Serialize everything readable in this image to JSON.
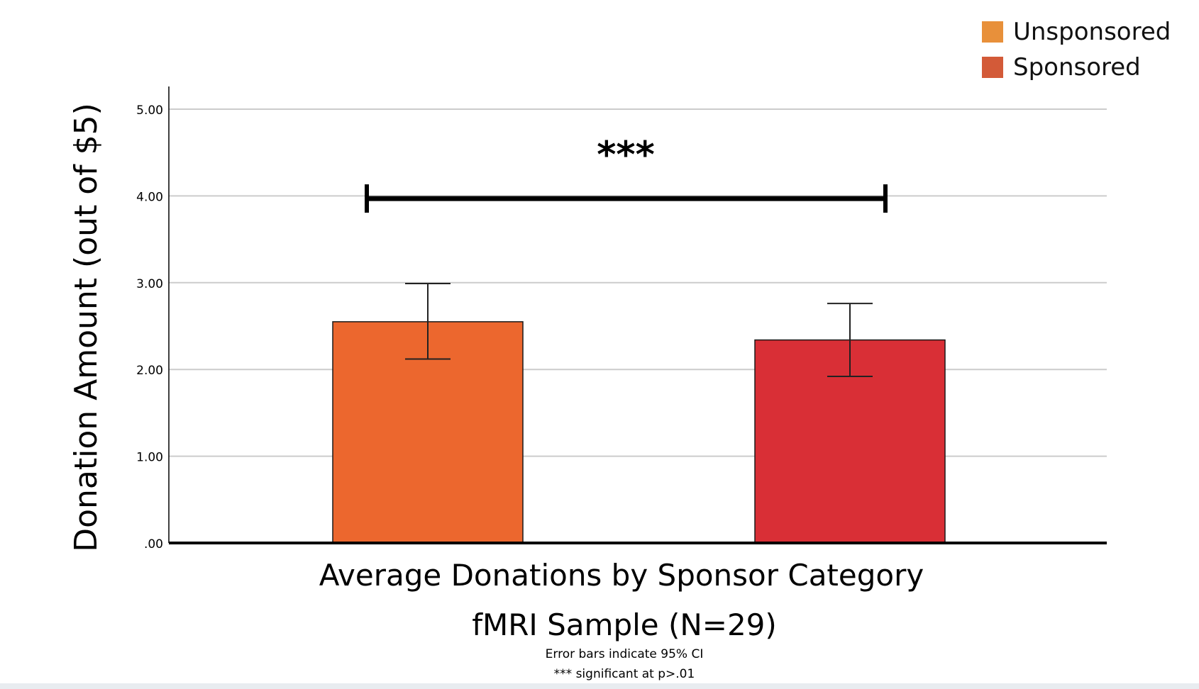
{
  "colors": {
    "unsponsored": "#EC672E",
    "sponsored": "#D92F36",
    "legend_unsponsored": "#E8903A",
    "legend_sponsored": "#D35A38",
    "grid": "#cccccc",
    "axis": "#000000"
  },
  "legend": {
    "items": [
      {
        "label": "Unsponsored",
        "color_key": "legend_unsponsored"
      },
      {
        "label": "Sponsored",
        "color_key": "legend_sponsored"
      }
    ]
  },
  "chart_data": {
    "type": "bar",
    "title": "Average Donations by Sponsor Category",
    "subtitle": "fMRI Sample (N=29)",
    "notes": [
      "Error bars indicate 95% CI",
      "*** significant at p>.01"
    ],
    "xlabel": "",
    "ylabel": "Donation Amount (out of $5)",
    "ylim": [
      0,
      5
    ],
    "yticks": [
      0,
      1,
      2,
      3,
      4,
      5
    ],
    "ytick_labels": [
      ".00",
      "1.00",
      "2.00",
      "3.00",
      "4.00",
      "5.00"
    ],
    "grid": true,
    "legend_position": "top-right",
    "categories": [
      "Unsponsored",
      "Sponsored"
    ],
    "values": [
      2.55,
      2.34
    ],
    "error_low": [
      2.12,
      1.92
    ],
    "error_high": [
      2.99,
      2.76
    ],
    "significance": {
      "label": "***",
      "level": 3.97
    }
  }
}
